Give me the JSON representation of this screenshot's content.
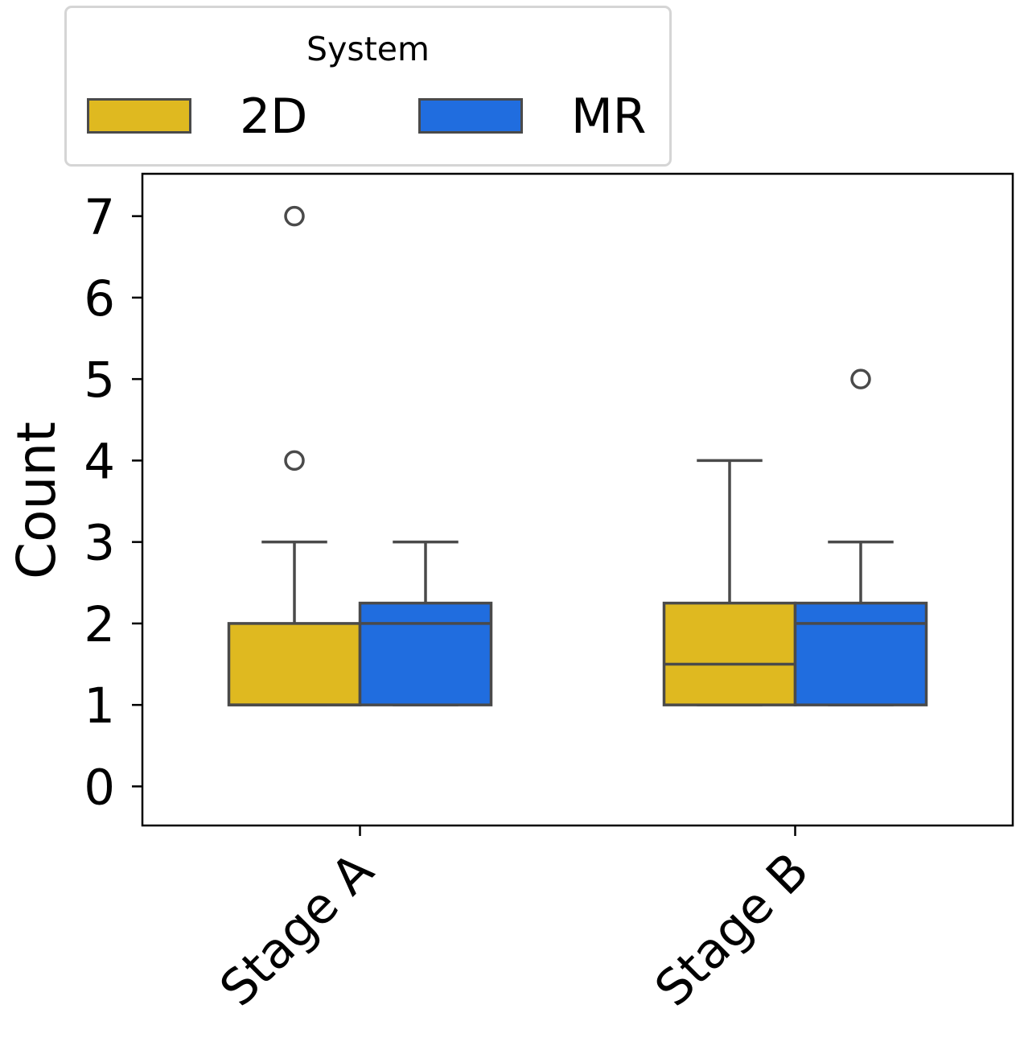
{
  "chart_data": {
    "type": "box",
    "title": "",
    "xlabel": "",
    "ylabel": "Count",
    "categories": [
      "Stage A",
      "Stage B"
    ],
    "yticks": [
      0,
      1,
      2,
      3,
      4,
      5,
      6,
      7
    ],
    "ylim": [
      -0.48,
      7.52
    ],
    "grid": false,
    "legend": {
      "title": "System",
      "placement": "top-left-outside",
      "entries": [
        {
          "name": "2D",
          "color": "#DFB920"
        },
        {
          "name": "MR",
          "color": "#206DDF"
        }
      ]
    },
    "series": [
      {
        "name": "2D",
        "color": "#DFB920",
        "boxes": [
          {
            "category": "Stage A",
            "whisker_low": 1,
            "q1": 1,
            "median": 1,
            "q3": 2,
            "whisker_high": 3,
            "outliers": [
              4,
              7
            ]
          },
          {
            "category": "Stage B",
            "whisker_low": 1,
            "q1": 1,
            "median": 1.5,
            "q3": 2.25,
            "whisker_high": 4,
            "outliers": []
          }
        ]
      },
      {
        "name": "MR",
        "color": "#206DDF",
        "boxes": [
          {
            "category": "Stage A",
            "whisker_low": 1,
            "q1": 1,
            "median": 2,
            "q3": 2.25,
            "whisker_high": 3,
            "outliers": []
          },
          {
            "category": "Stage B",
            "whisker_low": 1,
            "q1": 1,
            "median": 2,
            "q3": 2.25,
            "whisker_high": 3,
            "outliers": [
              5
            ]
          }
        ]
      }
    ],
    "line_color": "#4a4a4a"
  }
}
